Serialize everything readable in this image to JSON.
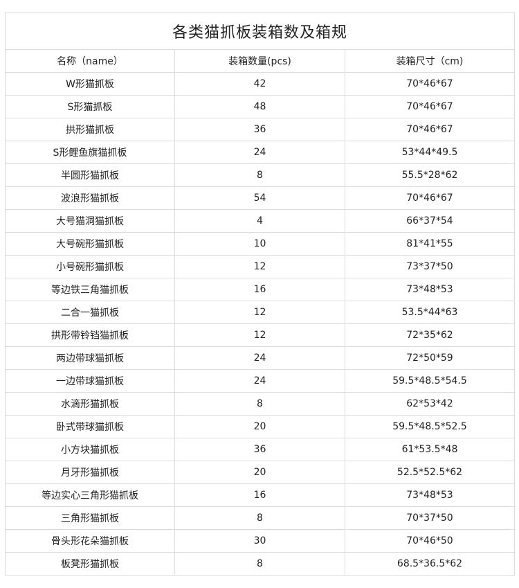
{
  "title": "各类猫抓板装箱数及箱规",
  "headers": [
    "名称（name）",
    "装箱数量(pcs)",
    "装箱尺寸（cm)"
  ],
  "rows": [
    [
      "W形猫抓板",
      "42",
      "70*46*67"
    ],
    [
      "S形猫抓板",
      "48",
      "70*46*67"
    ],
    [
      "拱形猫抓板",
      "36",
      "70*46*67"
    ],
    [
      "S形鲤鱼旗猫抓板",
      "24",
      "53*44*49.5"
    ],
    [
      "半圆形猫抓板",
      "8",
      "55.5*28*62"
    ],
    [
      "波浪形猫抓板",
      "54",
      "70*46*67"
    ],
    [
      "大号猫洞猫抓板",
      "4",
      "66*37*54"
    ],
    [
      "大号碗形猫抓板",
      "10",
      "81*41*55"
    ],
    [
      "小号碗形猫抓板",
      "12",
      "73*37*50"
    ],
    [
      "等边铁三角猫抓板",
      "16",
      "73*48*53"
    ],
    [
      "二合一猫抓板",
      "12",
      "53.5*44*63"
    ],
    [
      "拱形带铃铛猫抓板",
      "12",
      "72*35*62"
    ],
    [
      "两边带球猫抓板",
      "24",
      "72*50*59"
    ],
    [
      "一边带球猫抓板",
      "24",
      "59.5*48.5*54.5"
    ],
    [
      "水滴形猫抓板",
      "8",
      "62*53*42"
    ],
    [
      "卧式带球猫抓板",
      "20",
      "59.5*48.5*52.5"
    ],
    [
      "小方块猫抓板",
      "36",
      "61*53.5*48"
    ],
    [
      "月牙形猫抓板",
      "20",
      "52.5*52.5*62"
    ],
    [
      "等边实心三角形猫抓板",
      "16",
      "73*48*53"
    ],
    [
      "三角形猫抓板",
      "8",
      "70*37*50"
    ],
    [
      "骨头形花朵猫抓板",
      "30",
      "70*46*50"
    ],
    [
      "板凳形猫抓板",
      "8",
      "68.5*36.5*62"
    ]
  ]
}
